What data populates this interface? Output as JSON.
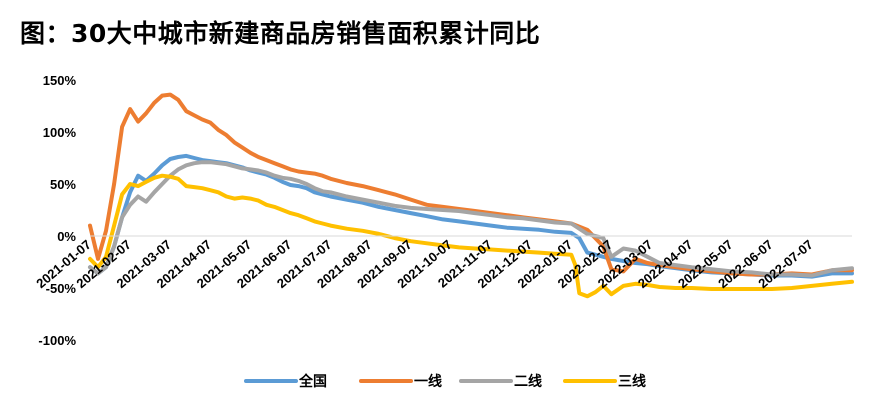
{
  "chart_data": {
    "type": "line",
    "title": "图：30大中城市新建商品房销售面积累计同比",
    "xlabel": "",
    "ylabel": "",
    "ylim": [
      -1.0,
      1.5
    ],
    "yticks": [
      "150%",
      "100%",
      "50%",
      "0%",
      "-50%",
      "-100%"
    ],
    "ytick_values": [
      1.5,
      1.0,
      0.5,
      0.0,
      -0.5,
      -1.0
    ],
    "xlim": [
      0,
      19
    ],
    "x_tick_labels": [
      "2021-01-07",
      "2021-02-07",
      "2021-03-07",
      "2021-04-07",
      "2021-05-07",
      "2021-06-07",
      "2021-07-07",
      "2021-08-07",
      "2021-09-07",
      "2021-10-07",
      "2021-11-07",
      "2021-12-07",
      "2022-01-07",
      "2022-02-07",
      "2022-03-07",
      "2022-04-07",
      "2022-05-07",
      "2022-06-07",
      "2022-07-07"
    ],
    "legend_position": "bottom",
    "grid": false,
    "series": [
      {
        "name": "全国",
        "color": "#5B9BD5",
        "x": [
          0.0,
          0.2,
          0.4,
          0.6,
          0.8,
          1.0,
          1.2,
          1.4,
          1.6,
          1.8,
          2.0,
          2.2,
          2.4,
          2.6,
          2.8,
          3.0,
          3.2,
          3.4,
          3.6,
          3.8,
          4.0,
          4.2,
          4.4,
          4.6,
          4.8,
          5.0,
          5.2,
          5.4,
          5.6,
          5.8,
          6.0,
          6.4,
          6.8,
          7.2,
          7.6,
          8.0,
          8.4,
          8.8,
          9.2,
          9.6,
          10.0,
          10.4,
          10.8,
          11.2,
          11.6,
          12.0,
          12.2,
          12.4,
          12.6,
          12.8,
          13.0,
          13.3,
          13.6,
          13.9,
          14.2,
          14.6,
          15.0,
          15.5,
          16.0,
          16.5,
          17.0,
          17.5,
          18.0,
          18.5,
          19.0
        ],
        "y": [
          -0.3,
          -0.36,
          -0.3,
          -0.1,
          0.18,
          0.42,
          0.58,
          0.53,
          0.6,
          0.68,
          0.74,
          0.76,
          0.77,
          0.75,
          0.73,
          0.72,
          0.71,
          0.7,
          0.68,
          0.66,
          0.63,
          0.61,
          0.59,
          0.56,
          0.52,
          0.49,
          0.48,
          0.46,
          0.42,
          0.4,
          0.38,
          0.35,
          0.32,
          0.28,
          0.25,
          0.22,
          0.19,
          0.16,
          0.14,
          0.12,
          0.1,
          0.08,
          0.07,
          0.06,
          0.04,
          0.03,
          -0.02,
          -0.16,
          -0.18,
          -0.2,
          -0.22,
          -0.24,
          -0.26,
          -0.27,
          -0.29,
          -0.31,
          -0.33,
          -0.35,
          -0.36,
          -0.37,
          -0.38,
          -0.38,
          -0.39,
          -0.36,
          -0.36
        ]
      },
      {
        "name": "一线",
        "color": "#ED7D31",
        "x": [
          0.0,
          0.2,
          0.4,
          0.6,
          0.8,
          1.0,
          1.2,
          1.4,
          1.6,
          1.8,
          2.0,
          2.2,
          2.4,
          2.6,
          2.8,
          3.0,
          3.2,
          3.4,
          3.6,
          3.8,
          4.0,
          4.2,
          4.4,
          4.6,
          4.8,
          5.0,
          5.2,
          5.4,
          5.6,
          5.8,
          6.0,
          6.4,
          6.8,
          7.2,
          7.6,
          8.0,
          8.4,
          8.8,
          9.2,
          9.6,
          10.0,
          10.4,
          10.8,
          11.2,
          11.6,
          12.0,
          12.4,
          12.8,
          13.0,
          13.3,
          13.6,
          13.9,
          14.2,
          14.6,
          15.0,
          15.5,
          16.0,
          16.5,
          17.0,
          17.5,
          18.0,
          18.5,
          19.0
        ],
        "y": [
          0.1,
          -0.22,
          0.05,
          0.5,
          1.05,
          1.22,
          1.1,
          1.18,
          1.28,
          1.35,
          1.36,
          1.31,
          1.2,
          1.16,
          1.12,
          1.09,
          1.02,
          0.97,
          0.9,
          0.85,
          0.8,
          0.76,
          0.73,
          0.7,
          0.67,
          0.64,
          0.62,
          0.61,
          0.6,
          0.58,
          0.55,
          0.51,
          0.48,
          0.44,
          0.4,
          0.35,
          0.3,
          0.28,
          0.26,
          0.24,
          0.22,
          0.2,
          0.18,
          0.16,
          0.14,
          0.12,
          0.06,
          -0.1,
          -0.32,
          -0.34,
          -0.22,
          -0.26,
          -0.28,
          -0.3,
          -0.32,
          -0.34,
          -0.36,
          -0.37,
          -0.37,
          -0.36,
          -0.37,
          -0.33,
          -0.33
        ]
      },
      {
        "name": "二线",
        "color": "#A5A5A5",
        "x": [
          0.0,
          0.2,
          0.4,
          0.6,
          0.8,
          1.0,
          1.2,
          1.4,
          1.6,
          1.8,
          2.0,
          2.2,
          2.4,
          2.6,
          2.8,
          3.0,
          3.2,
          3.4,
          3.6,
          3.8,
          4.0,
          4.2,
          4.4,
          4.6,
          4.8,
          5.0,
          5.2,
          5.4,
          5.6,
          5.8,
          6.0,
          6.4,
          6.8,
          7.2,
          7.6,
          8.0,
          8.4,
          8.8,
          9.2,
          9.6,
          10.0,
          10.4,
          10.8,
          11.2,
          11.6,
          12.0,
          12.4,
          12.8,
          13.0,
          13.3,
          13.6,
          13.9,
          14.2,
          14.6,
          15.0,
          15.5,
          16.0,
          16.5,
          17.0,
          17.5,
          18.0,
          18.5,
          19.0
        ],
        "y": [
          -0.3,
          -0.36,
          -0.3,
          -0.1,
          0.18,
          0.3,
          0.38,
          0.33,
          0.42,
          0.5,
          0.58,
          0.64,
          0.68,
          0.7,
          0.71,
          0.71,
          0.7,
          0.69,
          0.67,
          0.65,
          0.64,
          0.63,
          0.61,
          0.58,
          0.56,
          0.55,
          0.53,
          0.5,
          0.46,
          0.43,
          0.42,
          0.38,
          0.35,
          0.32,
          0.29,
          0.27,
          0.26,
          0.25,
          0.24,
          0.22,
          0.2,
          0.18,
          0.17,
          0.15,
          0.13,
          0.12,
          0.02,
          -0.02,
          -0.2,
          -0.12,
          -0.14,
          -0.2,
          -0.26,
          -0.28,
          -0.3,
          -0.32,
          -0.34,
          -0.35,
          -0.37,
          -0.37,
          -0.38,
          -0.33,
          -0.31
        ]
      },
      {
        "name": "三线",
        "color": "#FFC000",
        "x": [
          0.0,
          0.2,
          0.4,
          0.6,
          0.8,
          1.0,
          1.2,
          1.4,
          1.6,
          1.8,
          2.0,
          2.2,
          2.4,
          2.6,
          2.8,
          3.0,
          3.2,
          3.4,
          3.6,
          3.8,
          4.0,
          4.2,
          4.4,
          4.6,
          4.8,
          5.0,
          5.2,
          5.4,
          5.6,
          5.8,
          6.0,
          6.4,
          6.8,
          7.2,
          7.6,
          8.0,
          8.4,
          8.8,
          9.2,
          9.6,
          10.0,
          10.4,
          10.8,
          11.2,
          11.6,
          12.0,
          12.1,
          12.2,
          12.4,
          12.6,
          12.8,
          13.0,
          13.3,
          13.6,
          13.9,
          14.2,
          14.6,
          15.0,
          15.5,
          16.0,
          16.5,
          17.0,
          17.5,
          18.0,
          18.5,
          19.0
        ],
        "y": [
          -0.22,
          -0.3,
          -0.2,
          0.1,
          0.4,
          0.5,
          0.48,
          0.52,
          0.56,
          0.58,
          0.57,
          0.55,
          0.48,
          0.47,
          0.46,
          0.44,
          0.42,
          0.38,
          0.36,
          0.37,
          0.36,
          0.34,
          0.3,
          0.28,
          0.25,
          0.22,
          0.2,
          0.17,
          0.14,
          0.12,
          0.1,
          0.07,
          0.05,
          0.02,
          -0.02,
          -0.05,
          -0.07,
          -0.09,
          -0.11,
          -0.12,
          -0.13,
          -0.14,
          -0.15,
          -0.16,
          -0.17,
          -0.18,
          -0.28,
          -0.55,
          -0.58,
          -0.54,
          -0.48,
          -0.56,
          -0.48,
          -0.46,
          -0.47,
          -0.49,
          -0.5,
          -0.5,
          -0.51,
          -0.51,
          -0.51,
          -0.51,
          -0.5,
          -0.48,
          -0.46,
          -0.44
        ]
      }
    ]
  }
}
